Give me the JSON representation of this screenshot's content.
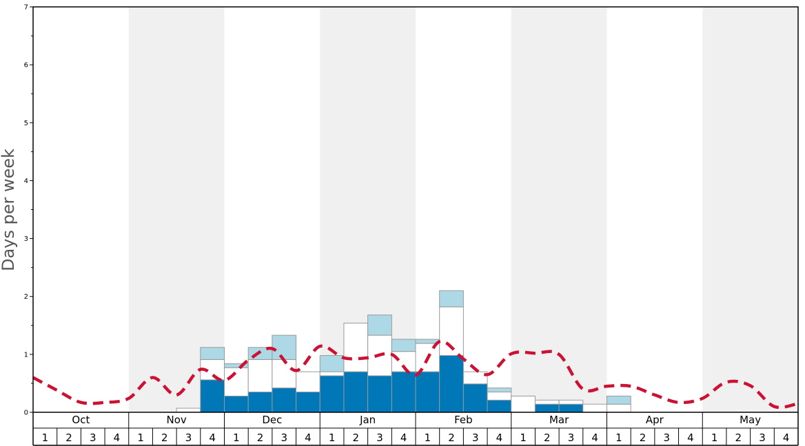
{
  "chart_data": {
    "type": "bar",
    "ylabel": "Days per week",
    "ylim": [
      0,
      7
    ],
    "y_ticks": [
      "0",
      "1",
      "2",
      "3",
      "4",
      "5",
      "6",
      "7"
    ],
    "months": [
      "Oct",
      "Nov",
      "Dec",
      "Jan",
      "Feb",
      "Mar",
      "Apr",
      "May"
    ],
    "week_labels": [
      "1",
      "2",
      "3",
      "4"
    ],
    "colors": {
      "dark": "#0077b6",
      "white": "#ffffff",
      "light": "#add8e6",
      "line": "#cc1133",
      "band": "#f0f0f0"
    },
    "series": [
      {
        "values": [
          0,
          0,
          0,
          0,
          0,
          0,
          0,
          0.56,
          0.28,
          0.35,
          0.42,
          0.35,
          0.63,
          0.7,
          0.63,
          0.7,
          0.7,
          0.98,
          0.49,
          0.21,
          0,
          0.14,
          0.14,
          0,
          0,
          0,
          0,
          0,
          0,
          0,
          0,
          0
        ]
      },
      {
        "values": [
          0,
          0,
          0,
          0,
          0,
          0,
          0.07,
          0.35,
          0.49,
          0.56,
          0.49,
          0.35,
          0.07,
          0.84,
          0.7,
          0.35,
          0.49,
          0.84,
          0.21,
          0.14,
          0.28,
          0.07,
          0.07,
          0.14,
          0.14,
          0,
          0,
          0,
          0,
          0,
          0,
          0
        ]
      },
      {
        "values": [
          0,
          0,
          0,
          0,
          0,
          0,
          0,
          0.21,
          0.07,
          0.21,
          0.42,
          0,
          0.28,
          0,
          0.35,
          0.21,
          0.07,
          0.28,
          0,
          0.07,
          0,
          0,
          0,
          0,
          0.14,
          0,
          0,
          0,
          0,
          0,
          0,
          0
        ]
      },
      {
        "values": [
          0.6,
          0.38,
          0.17,
          0.17,
          0.24,
          0.6,
          0.3,
          0.74,
          0.55,
          0.9,
          1.1,
          0.72,
          1.14,
          0.94,
          0.94,
          1.0,
          0.64,
          1.22,
          0.92,
          0.65,
          1.01,
          1.02,
          1.0,
          0.4,
          0.45,
          0.45,
          0.3,
          0.17,
          0.24,
          0.52,
          0.46,
          0.1
        ]
      }
    ]
  }
}
